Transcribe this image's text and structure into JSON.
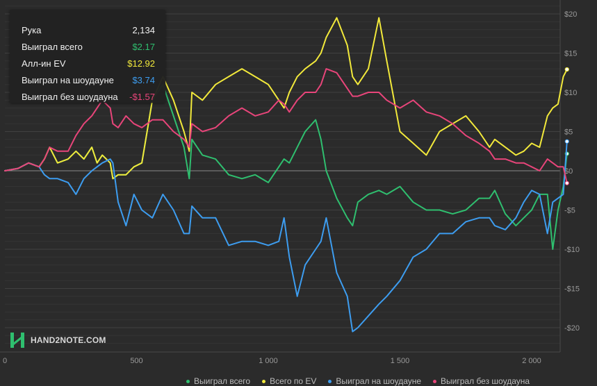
{
  "tooltip": {
    "rows": [
      {
        "label": "Рука",
        "value": "2,134",
        "color": "#f0f0f0"
      },
      {
        "label": "Выиграл всего",
        "value": "$2.17",
        "color": "#2fbf6f"
      },
      {
        "label": "Алл-ин EV",
        "value": "$12.92",
        "color": "#f2e93b"
      },
      {
        "label": "Выиграл на шоудауне",
        "value": "$3.74",
        "color": "#3d9df0"
      },
      {
        "label": "Выиграл без шоудауна",
        "value": "-$1.57",
        "color": "#e8457a"
      }
    ]
  },
  "watermark": {
    "text": "HAND2NOTE.COM"
  },
  "chart_data": {
    "type": "line",
    "xlim": [
      0,
      2134
    ],
    "ylim": [
      -22,
      21
    ],
    "x_ticks": [
      0,
      500,
      1000,
      1500,
      2000
    ],
    "x_tick_labels": [
      "0",
      "500",
      "1 000",
      "1 500",
      "2 000"
    ],
    "y_ticks": [
      20,
      15,
      10,
      5,
      0,
      -5,
      -10,
      -15,
      -20
    ],
    "y_tick_labels": [
      "$20",
      "$15",
      "$10",
      "$5",
      "$0",
      "-$5",
      "-$10",
      "-$15",
      "-$20"
    ],
    "grid": true,
    "legend_position": "bottom",
    "series": [
      {
        "name": "Выиграл всего",
        "color": "#2fbf6f",
        "x": [
          0,
          50,
          90,
          130,
          150,
          170,
          200,
          240,
          270,
          300,
          330,
          350,
          370,
          400,
          410,
          430,
          460,
          490,
          520,
          560,
          600,
          640,
          680,
          700,
          710,
          750,
          800,
          850,
          900,
          950,
          1000,
          1040,
          1060,
          1080,
          1110,
          1140,
          1180,
          1200,
          1220,
          1260,
          1300,
          1320,
          1340,
          1380,
          1420,
          1450,
          1500,
          1550,
          1600,
          1650,
          1700,
          1750,
          1800,
          1840,
          1860,
          1900,
          1940,
          1970,
          2000,
          2030,
          2060,
          2080,
          2100,
          2120,
          2134
        ],
        "values": [
          0,
          0.3,
          1,
          0.5,
          1.5,
          3,
          1,
          1.5,
          2.5,
          1.5,
          3,
          1,
          2,
          1,
          -1,
          -0.5,
          -0.5,
          0.5,
          1,
          9,
          11,
          7,
          3,
          -1,
          4,
          2,
          1.5,
          -0.5,
          -1,
          -0.5,
          -1.5,
          0.5,
          1.5,
          1,
          3,
          5,
          6.5,
          4,
          0,
          -3.5,
          -6,
          -7,
          -4,
          -3,
          -2.5,
          -3,
          -2,
          -4,
          -5,
          -5,
          -5.5,
          -5,
          -3.5,
          -3.5,
          -2.5,
          -5.5,
          -7,
          -6,
          -5,
          -3,
          -3,
          -10,
          -5,
          -2,
          2.17
        ]
      },
      {
        "name": "Всего по EV",
        "color": "#f2e93b",
        "x": [
          0,
          50,
          90,
          130,
          150,
          170,
          200,
          240,
          270,
          300,
          330,
          350,
          370,
          400,
          410,
          430,
          460,
          490,
          520,
          560,
          600,
          640,
          680,
          700,
          710,
          750,
          800,
          850,
          900,
          950,
          1000,
          1040,
          1060,
          1080,
          1110,
          1140,
          1180,
          1200,
          1220,
          1260,
          1300,
          1320,
          1340,
          1380,
          1420,
          1450,
          1500,
          1550,
          1600,
          1650,
          1700,
          1750,
          1800,
          1840,
          1860,
          1900,
          1940,
          1970,
          2000,
          2030,
          2060,
          2080,
          2100,
          2120,
          2134
        ],
        "values": [
          0,
          0.3,
          1,
          0.5,
          1.5,
          3,
          1,
          1.5,
          2.5,
          1.5,
          3,
          1,
          2,
          1,
          -1,
          -0.5,
          -0.5,
          0.5,
          1,
          9,
          12,
          9,
          5,
          2.5,
          10,
          9,
          11,
          12,
          13,
          12,
          11,
          9,
          8,
          10,
          12,
          13,
          14,
          15,
          17,
          19.5,
          16,
          12,
          11,
          13,
          19.5,
          14,
          5,
          3.5,
          2,
          5,
          6,
          7,
          5,
          3,
          4,
          3,
          2,
          2.5,
          3.5,
          3,
          7,
          8,
          8.5,
          12,
          12.92
        ]
      },
      {
        "name": "Выиграл на шоудауне",
        "color": "#3d9df0",
        "x": [
          0,
          50,
          90,
          130,
          150,
          170,
          200,
          240,
          270,
          300,
          330,
          350,
          370,
          400,
          410,
          430,
          460,
          490,
          520,
          560,
          600,
          640,
          680,
          700,
          710,
          750,
          800,
          850,
          900,
          950,
          1000,
          1040,
          1060,
          1080,
          1110,
          1140,
          1180,
          1200,
          1220,
          1260,
          1300,
          1320,
          1340,
          1380,
          1420,
          1450,
          1500,
          1550,
          1600,
          1650,
          1700,
          1750,
          1800,
          1840,
          1860,
          1900,
          1940,
          1970,
          2000,
          2030,
          2060,
          2080,
          2100,
          2120,
          2134
        ],
        "values": [
          0,
          0.3,
          1,
          0.5,
          -0.5,
          -1,
          -1,
          -1.5,
          -3,
          -1,
          0,
          0.5,
          1,
          1.5,
          1,
          -4,
          -7,
          -3,
          -5,
          -6,
          -3,
          -5,
          -8,
          -8,
          -4.5,
          -6,
          -6,
          -9.5,
          -9,
          -9,
          -9.5,
          -9,
          -6,
          -11,
          -16,
          -12,
          -10,
          -9,
          -6,
          -13,
          -16,
          -20.5,
          -20,
          -18.5,
          -17,
          -16,
          -14,
          -11,
          -10,
          -8,
          -8,
          -6.5,
          -6,
          -6,
          -7,
          -7.5,
          -6,
          -4,
          -2.5,
          -3,
          -8,
          -4,
          -3.5,
          -3,
          3.74
        ]
      },
      {
        "name": "Выиграл без шоудауна",
        "color": "#e8457a",
        "x": [
          0,
          50,
          90,
          130,
          150,
          170,
          200,
          240,
          270,
          300,
          330,
          350,
          370,
          400,
          410,
          430,
          460,
          490,
          520,
          560,
          600,
          640,
          680,
          700,
          710,
          750,
          800,
          850,
          900,
          950,
          1000,
          1040,
          1060,
          1080,
          1110,
          1140,
          1180,
          1200,
          1220,
          1260,
          1300,
          1320,
          1340,
          1380,
          1420,
          1450,
          1500,
          1550,
          1600,
          1650,
          1700,
          1750,
          1800,
          1840,
          1860,
          1900,
          1940,
          1970,
          2000,
          2030,
          2060,
          2080,
          2100,
          2120,
          2134
        ],
        "values": [
          0,
          0.3,
          1,
          0.5,
          1.5,
          3,
          2.5,
          2.5,
          4.5,
          6,
          7,
          8,
          9,
          8,
          6,
          5.5,
          7,
          6,
          5.5,
          6.5,
          6.5,
          5,
          4,
          3,
          6,
          5,
          5.5,
          7,
          8,
          7,
          7.5,
          9,
          8.5,
          7.5,
          9,
          10,
          10,
          11,
          13,
          12.5,
          10.5,
          9.5,
          9.5,
          10,
          10,
          9,
          8,
          9,
          7.5,
          7,
          6,
          4.5,
          3.5,
          2.5,
          1.5,
          1.5,
          1,
          1,
          0.5,
          0,
          1.5,
          1,
          0.5,
          0.5,
          -1.57
        ]
      }
    ]
  }
}
